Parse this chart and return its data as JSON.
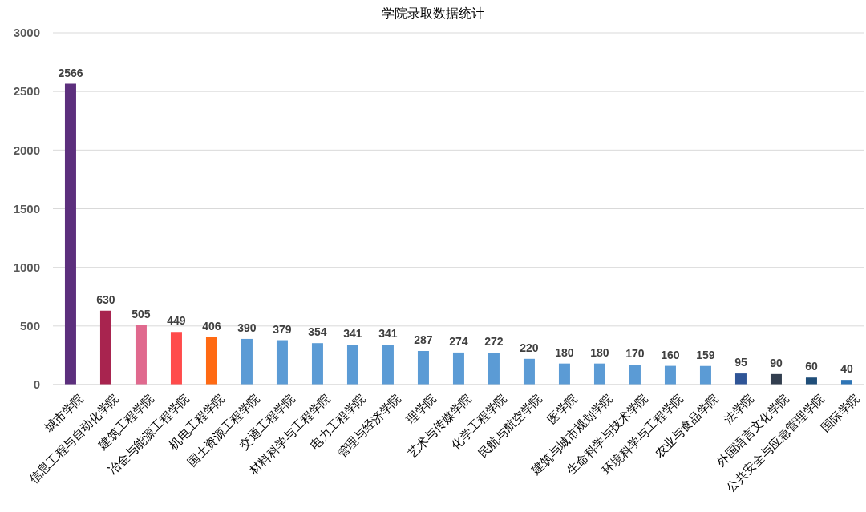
{
  "chart_data": {
    "type": "bar",
    "title": "学院录取数据统计",
    "categories": [
      "城市学院",
      "信息工程与自动化学院",
      "建筑工程学院",
      "冶金与能源工程学院",
      "机电工程学院",
      "国土资源工程学院",
      "交通工程学院",
      "材料科学与工程学院",
      "电力工程学院",
      "管理与经济学院",
      "理学院",
      "艺术与传媒学院",
      "化学工程学院",
      "民航与航空学院",
      "医学院",
      "建筑与城市规划学院",
      "生命科学与技术学院",
      "环境科学与工程学院",
      "农业与食品学院",
      "法学院",
      "外国语言文化学院",
      "公共安全与应急管理学院",
      "国际学院"
    ],
    "values": [
      2566,
      630,
      505,
      449,
      406,
      390,
      379,
      354,
      341,
      341,
      287,
      274,
      272,
      220,
      180,
      180,
      170,
      160,
      159,
      95,
      90,
      60,
      40
    ],
    "colors": [
      "#5c2f7d",
      "#a8244f",
      "#e0698e",
      "#ff4b4b",
      "#ff6a13",
      "#5b9bd5",
      "#5b9bd5",
      "#5b9bd5",
      "#5b9bd5",
      "#5b9bd5",
      "#5b9bd5",
      "#5b9bd5",
      "#5b9bd5",
      "#5b9bd5",
      "#5b9bd5",
      "#5b9bd5",
      "#5b9bd5",
      "#5b9bd5",
      "#5b9bd5",
      "#2f5597",
      "#323e4f",
      "#1f4e79",
      "#2e75b6"
    ],
    "ylim": [
      0,
      3000
    ],
    "yticks": [
      0,
      500,
      1000,
      1500,
      2000,
      2500,
      3000
    ],
    "grid": "y",
    "data_labels": true
  }
}
